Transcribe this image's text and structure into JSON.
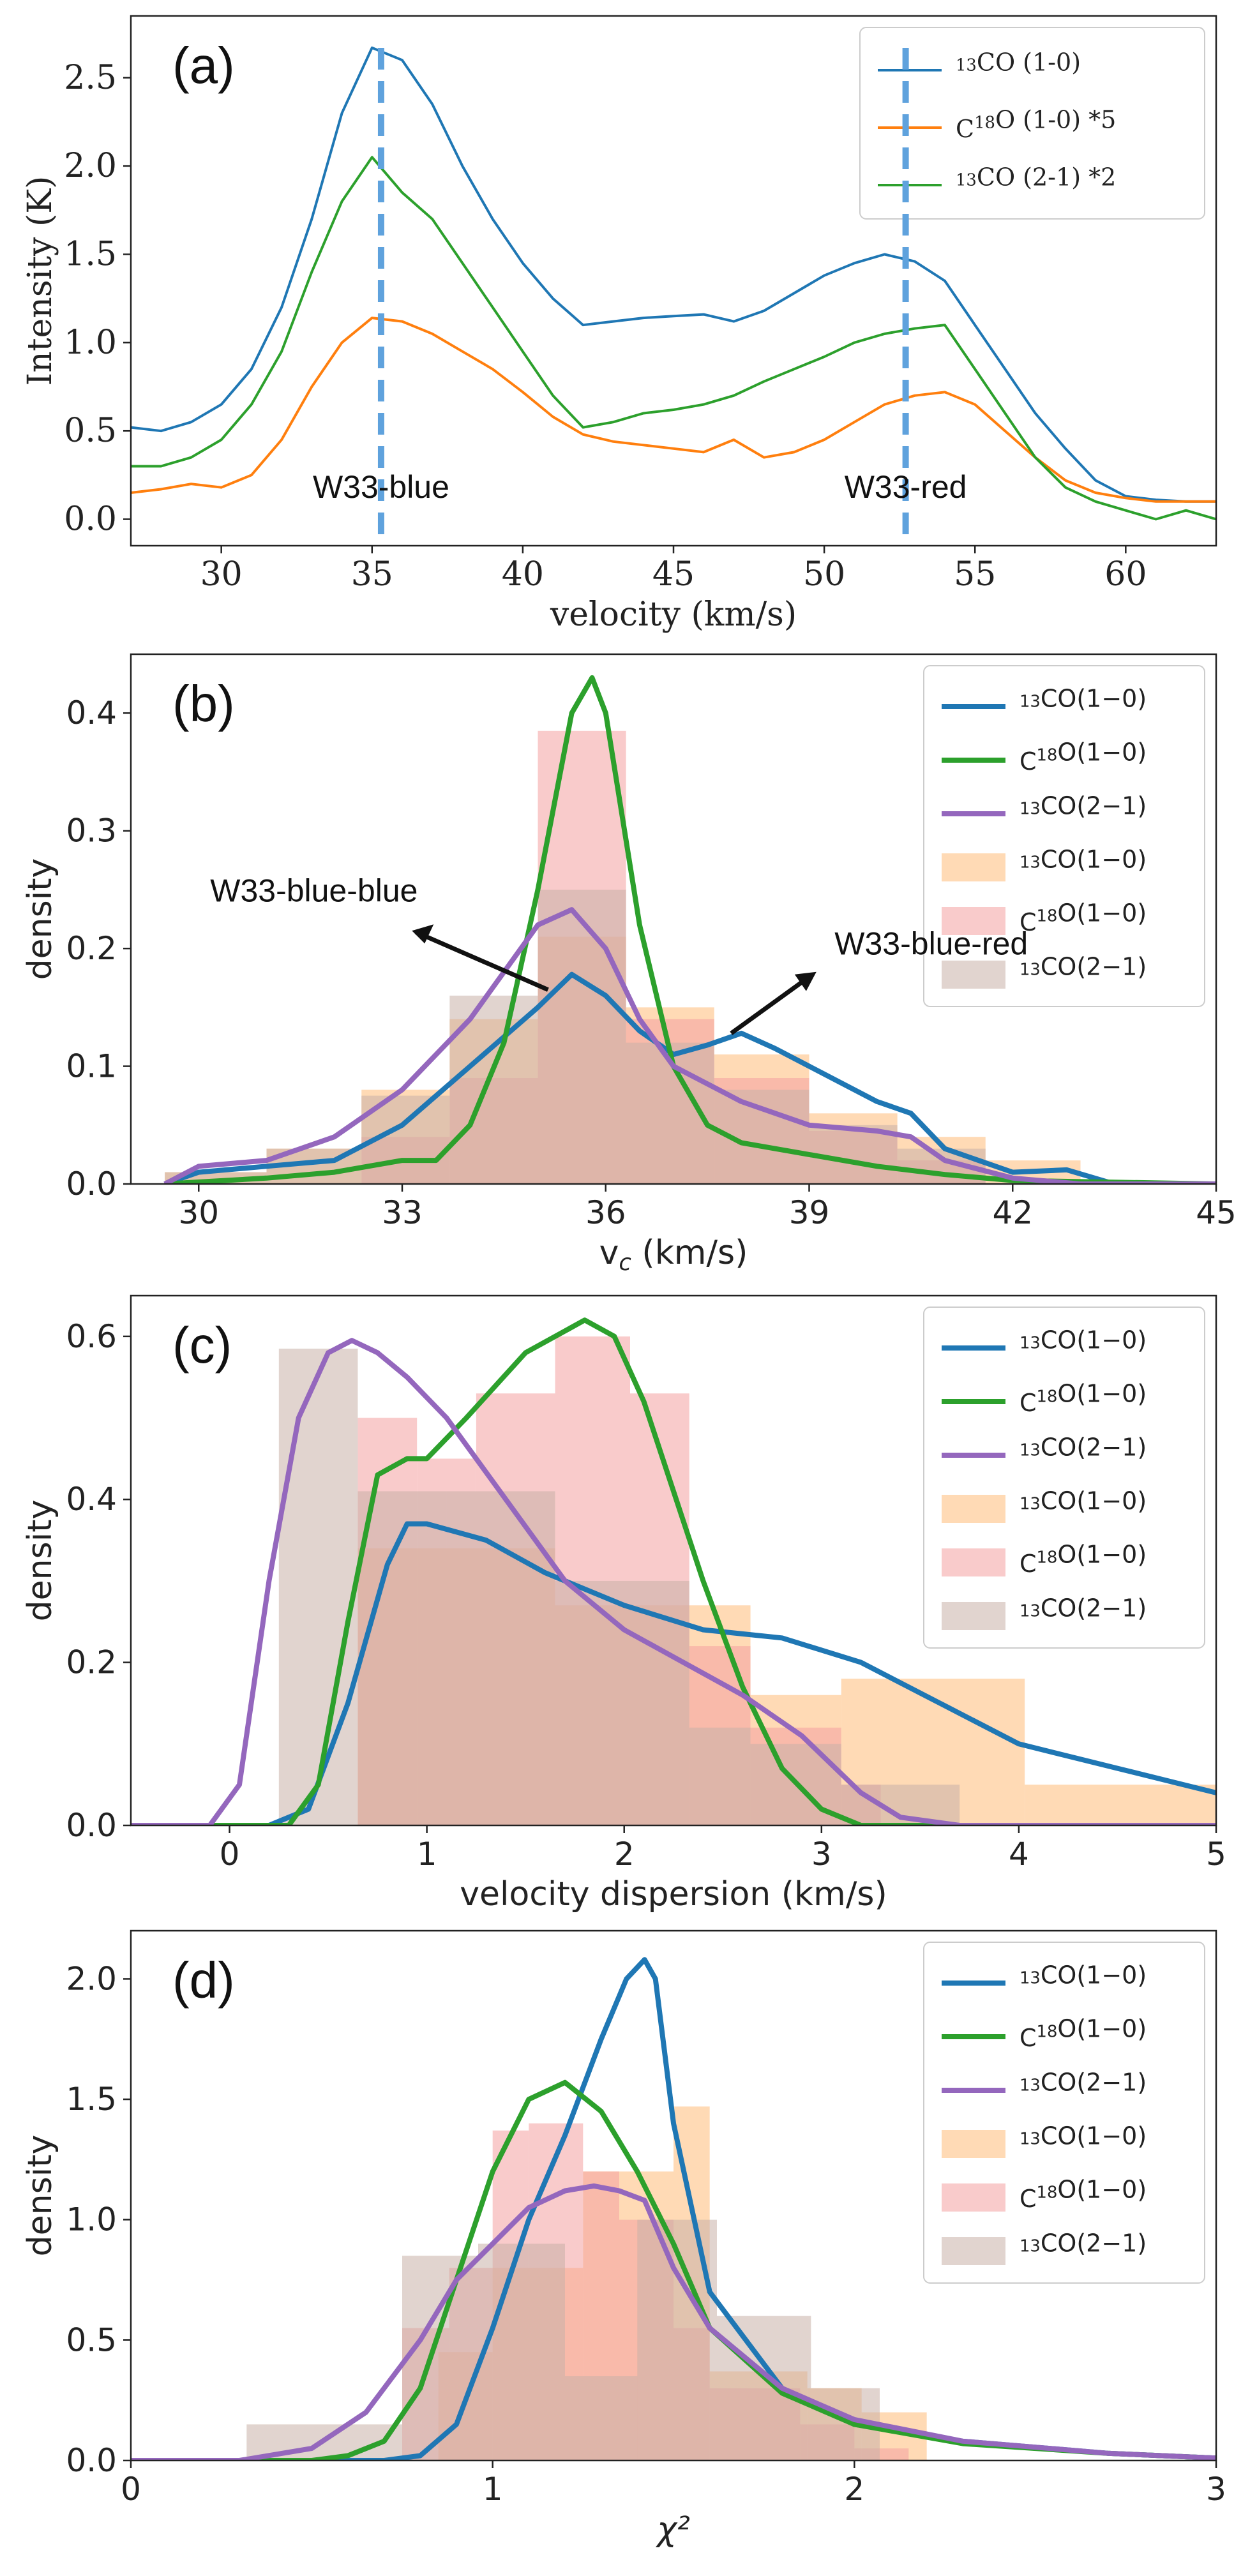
{
  "chart_data": [
    {
      "panel": "(a)",
      "type": "line",
      "xlabel": "velocity (km/s)",
      "ylabel": "Intensity (K)",
      "xlim": [
        27,
        63
      ],
      "ylim": [
        -0.15,
        2.85
      ],
      "xticks": [
        30,
        35,
        40,
        45,
        50,
        55,
        60
      ],
      "yticks": [
        0.0,
        0.5,
        1.0,
        1.5,
        2.0,
        2.5
      ],
      "legend_position": "top-right",
      "series": [
        {
          "name": "13CO (1-0)",
          "color": "#1f77b4",
          "x": [
            27,
            28,
            29,
            30,
            31,
            32,
            33,
            34,
            35,
            36,
            37,
            38,
            39,
            40,
            41,
            42,
            43,
            44,
            45,
            46,
            47,
            48,
            49,
            50,
            51,
            52,
            53,
            54,
            55,
            56,
            57,
            58,
            59,
            60,
            61,
            62,
            63
          ],
          "y": [
            0.52,
            0.5,
            0.55,
            0.65,
            0.85,
            1.2,
            1.7,
            2.3,
            2.67,
            2.6,
            2.35,
            2.0,
            1.7,
            1.45,
            1.25,
            1.1,
            1.12,
            1.14,
            1.15,
            1.16,
            1.12,
            1.18,
            1.28,
            1.38,
            1.45,
            1.5,
            1.46,
            1.35,
            1.1,
            0.85,
            0.6,
            0.4,
            0.22,
            0.13,
            0.11,
            0.1,
            0.1
          ]
        },
        {
          "name": "C18O (1-0) *5",
          "color": "#ff7f0e",
          "x": [
            27,
            28,
            29,
            30,
            31,
            32,
            33,
            34,
            35,
            36,
            37,
            38,
            39,
            40,
            41,
            42,
            43,
            44,
            45,
            46,
            47,
            48,
            49,
            50,
            51,
            52,
            53,
            54,
            55,
            56,
            57,
            58,
            59,
            60,
            61,
            62,
            63
          ],
          "y": [
            0.15,
            0.17,
            0.2,
            0.18,
            0.25,
            0.45,
            0.75,
            1.0,
            1.14,
            1.12,
            1.05,
            0.95,
            0.85,
            0.72,
            0.58,
            0.48,
            0.44,
            0.42,
            0.4,
            0.38,
            0.45,
            0.35,
            0.38,
            0.45,
            0.55,
            0.65,
            0.7,
            0.72,
            0.65,
            0.5,
            0.35,
            0.22,
            0.15,
            0.12,
            0.1,
            0.1,
            0.1
          ]
        },
        {
          "name": "13CO (2-1) *2",
          "color": "#2ca02c",
          "x": [
            27,
            28,
            29,
            30,
            31,
            32,
            33,
            34,
            35,
            36,
            37,
            38,
            39,
            40,
            41,
            42,
            43,
            44,
            45,
            46,
            47,
            48,
            49,
            50,
            51,
            52,
            53,
            54,
            55,
            56,
            57,
            58,
            59,
            60,
            61,
            62,
            63
          ],
          "y": [
            0.3,
            0.3,
            0.35,
            0.45,
            0.65,
            0.95,
            1.4,
            1.8,
            2.05,
            1.85,
            1.7,
            1.45,
            1.2,
            0.95,
            0.7,
            0.52,
            0.55,
            0.6,
            0.62,
            0.65,
            0.7,
            0.78,
            0.85,
            0.92,
            1.0,
            1.05,
            1.08,
            1.1,
            0.85,
            0.6,
            0.35,
            0.18,
            0.1,
            0.05,
            0.0,
            0.05,
            0.0
          ]
        }
      ],
      "annotations": [
        {
          "text": "W33-blue",
          "x": 35.3
        },
        {
          "text": "W33-red",
          "x": 52.7
        }
      ]
    },
    {
      "panel": "(b)",
      "type": "histogram+kde",
      "xlabel": "v_c (km/s)",
      "ylabel": "density",
      "xlim": [
        29,
        45
      ],
      "ylim": [
        0,
        0.45
      ],
      "xticks": [
        30,
        33,
        36,
        39,
        42,
        45
      ],
      "yticks": [
        0.0,
        0.1,
        0.2,
        0.3,
        0.4
      ],
      "legend_position": "top-right",
      "annotations": [
        {
          "text": "W33-blue-blue"
        },
        {
          "text": "W33-blue-red"
        }
      ],
      "kde": [
        {
          "name": "13CO(1−0)",
          "color": "#1f77b4",
          "x": [
            29.5,
            30,
            31,
            32,
            33,
            34,
            35,
            35.5,
            36,
            36.5,
            37,
            37.5,
            38,
            38.5,
            39,
            40,
            40.5,
            41,
            42,
            42.8,
            43.5,
            45
          ],
          "y": [
            0.0,
            0.01,
            0.015,
            0.02,
            0.05,
            0.1,
            0.15,
            0.178,
            0.16,
            0.13,
            0.11,
            0.118,
            0.128,
            0.115,
            0.1,
            0.07,
            0.06,
            0.03,
            0.01,
            0.012,
            0.0,
            0.0
          ]
        },
        {
          "name": "C18O(1−0)",
          "color": "#2ca02c",
          "x": [
            29.5,
            31,
            32,
            33,
            33.5,
            34,
            34.5,
            35,
            35.5,
            35.8,
            36,
            36.5,
            37,
            37.5,
            38,
            39,
            40,
            41,
            42,
            45
          ],
          "y": [
            0.0,
            0.005,
            0.01,
            0.02,
            0.02,
            0.05,
            0.12,
            0.25,
            0.4,
            0.43,
            0.4,
            0.22,
            0.1,
            0.05,
            0.035,
            0.025,
            0.015,
            0.008,
            0.003,
            0.0
          ]
        },
        {
          "name": "13CO(2−1)",
          "color": "#9467bd",
          "x": [
            29.5,
            30,
            31,
            32,
            33,
            34,
            35,
            35.5,
            36,
            36.5,
            37,
            38,
            39,
            40,
            40.5,
            41,
            42,
            43,
            45
          ],
          "y": [
            0.0,
            0.015,
            0.02,
            0.04,
            0.08,
            0.14,
            0.22,
            0.233,
            0.2,
            0.14,
            0.1,
            0.07,
            0.05,
            0.045,
            0.04,
            0.02,
            0.005,
            0.0,
            0.0
          ]
        }
      ],
      "hist": [
        {
          "name": "13CO(1−0)",
          "color": "#ffbb78",
          "bins": [
            29.5,
            31,
            32.4,
            33.7,
            35.0,
            36.3,
            37.6,
            39.0,
            40.3,
            41.6,
            43.0
          ],
          "values": [
            0.01,
            0.03,
            0.08,
            0.14,
            0.21,
            0.15,
            0.11,
            0.06,
            0.04,
            0.02
          ]
        },
        {
          "name": "C18O(1−0)",
          "color": "#f4a0a0",
          "bins": [
            32.4,
            33.7,
            35.0,
            36.3,
            37.6,
            39.0,
            40.3,
            41.6
          ],
          "values": [
            0.04,
            0.09,
            0.385,
            0.14,
            0.09,
            0.045,
            0.02
          ]
        },
        {
          "name": "13CO(2−1)",
          "color": "#c9b1a8",
          "bins": [
            29.5,
            31,
            32.4,
            33.7,
            35.0,
            36.3,
            37.6,
            39.0,
            40.3,
            41.6
          ],
          "values": [
            0.01,
            0.03,
            0.075,
            0.16,
            0.25,
            0.12,
            0.08,
            0.05,
            0.03
          ]
        }
      ]
    },
    {
      "panel": "(c)",
      "type": "histogram+kde",
      "xlabel": "velocity dispersion (km/s)",
      "ylabel": "density",
      "xlim": [
        -0.5,
        5
      ],
      "ylim": [
        0,
        0.65
      ],
      "xticks": [
        0,
        1,
        2,
        3,
        4,
        5
      ],
      "yticks": [
        0.0,
        0.2,
        0.4,
        0.6
      ],
      "legend_position": "top-right",
      "kde": [
        {
          "name": "13CO(1−0)",
          "color": "#1f77b4",
          "x": [
            -0.5,
            0.2,
            0.4,
            0.6,
            0.8,
            0.9,
            1.0,
            1.3,
            1.6,
            2.0,
            2.4,
            2.8,
            3.2,
            3.6,
            4.0,
            4.5,
            5.0
          ],
          "y": [
            0.0,
            0.0,
            0.02,
            0.15,
            0.32,
            0.37,
            0.37,
            0.35,
            0.31,
            0.27,
            0.24,
            0.23,
            0.2,
            0.15,
            0.1,
            0.07,
            0.04
          ]
        },
        {
          "name": "C18O(1−0)",
          "color": "#2ca02c",
          "x": [
            -0.5,
            0.3,
            0.45,
            0.6,
            0.75,
            0.9,
            1.0,
            1.2,
            1.5,
            1.8,
            1.95,
            2.1,
            2.4,
            2.6,
            2.8,
            3.0,
            3.2,
            5.0
          ],
          "y": [
            0.0,
            0.0,
            0.05,
            0.25,
            0.43,
            0.45,
            0.45,
            0.5,
            0.58,
            0.62,
            0.6,
            0.52,
            0.3,
            0.17,
            0.07,
            0.02,
            0.0,
            0.0
          ]
        },
        {
          "name": "13CO(2−1)",
          "color": "#9467bd",
          "x": [
            -0.5,
            -0.1,
            0.05,
            0.2,
            0.35,
            0.5,
            0.62,
            0.75,
            0.9,
            1.1,
            1.4,
            1.7,
            2.0,
            2.3,
            2.6,
            2.9,
            3.2,
            3.4,
            3.7,
            5.0
          ],
          "y": [
            0.0,
            0.0,
            0.05,
            0.3,
            0.5,
            0.58,
            0.595,
            0.58,
            0.55,
            0.5,
            0.4,
            0.3,
            0.24,
            0.2,
            0.16,
            0.11,
            0.04,
            0.01,
            0.0,
            0.0
          ]
        }
      ],
      "hist": [
        {
          "name": "13CO(1−0)",
          "color": "#ffbb78",
          "bins": [
            0.65,
            1.65,
            2.64,
            3.1,
            4.03,
            5.0
          ],
          "values": [
            0.34,
            0.27,
            0.16,
            0.18,
            0.05
          ]
        },
        {
          "name": "C18O(1−0)",
          "color": "#f4a0a0",
          "bins": [
            0.65,
            0.95,
            1.25,
            1.65,
            2.03,
            2.33,
            2.64,
            3.1,
            3.3
          ],
          "values": [
            0.5,
            0.45,
            0.53,
            0.6,
            0.53,
            0.22,
            0.12,
            0.05
          ]
        },
        {
          "name": "13CO(2−1)",
          "color": "#c9b1a8",
          "bins": [
            0.25,
            0.65,
            1.1,
            1.65,
            2.33,
            2.64,
            3.1,
            3.7
          ],
          "values": [
            0.585,
            0.41,
            0.41,
            0.3,
            0.12,
            0.1,
            0.05
          ]
        }
      ]
    },
    {
      "panel": "(d)",
      "type": "histogram+kde",
      "xlabel": "χ²",
      "ylabel": "density",
      "xlim": [
        0,
        3
      ],
      "ylim": [
        0,
        2.2
      ],
      "xticks": [
        0,
        1,
        2,
        3
      ],
      "yticks": [
        0.0,
        0.5,
        1.0,
        1.5,
        2.0
      ],
      "legend_position": "top-right",
      "kde": [
        {
          "name": "13CO(1−0)",
          "color": "#1f77b4",
          "x": [
            0,
            0.7,
            0.8,
            0.9,
            1.0,
            1.1,
            1.2,
            1.3,
            1.37,
            1.42,
            1.45,
            1.5,
            1.6,
            1.8,
            2.0,
            2.3,
            2.7,
            3.0
          ],
          "y": [
            0.0,
            0.0,
            0.02,
            0.15,
            0.55,
            1.0,
            1.35,
            1.75,
            2.0,
            2.08,
            2.0,
            1.4,
            0.7,
            0.3,
            0.15,
            0.08,
            0.03,
            0.01
          ]
        },
        {
          "name": "C18O(1−0)",
          "color": "#2ca02c",
          "x": [
            0,
            0.5,
            0.6,
            0.7,
            0.8,
            0.9,
            1.0,
            1.1,
            1.2,
            1.3,
            1.4,
            1.5,
            1.6,
            1.8,
            2.0,
            2.3,
            2.7,
            3.0
          ],
          "y": [
            0.0,
            0.0,
            0.02,
            0.08,
            0.3,
            0.75,
            1.2,
            1.5,
            1.57,
            1.45,
            1.2,
            0.9,
            0.55,
            0.28,
            0.15,
            0.07,
            0.03,
            0.01
          ]
        },
        {
          "name": "13CO(2−1)",
          "color": "#9467bd",
          "x": [
            0,
            0.3,
            0.5,
            0.65,
            0.8,
            0.9,
            1.0,
            1.1,
            1.2,
            1.28,
            1.35,
            1.42,
            1.5,
            1.6,
            1.8,
            2.0,
            2.3,
            2.7,
            3.0
          ],
          "y": [
            0.0,
            0.0,
            0.05,
            0.2,
            0.5,
            0.75,
            0.9,
            1.05,
            1.12,
            1.14,
            1.12,
            1.08,
            0.8,
            0.55,
            0.3,
            0.17,
            0.08,
            0.03,
            0.01
          ]
        }
      ],
      "hist": [
        {
          "name": "13CO(1−0)",
          "color": "#ffbb78",
          "bins": [
            0.85,
            1.0,
            1.25,
            1.5,
            1.6,
            1.87,
            2.02,
            2.2
          ],
          "values": [
            0.45,
            0.8,
            1.2,
            1.47,
            0.37,
            0.3,
            0.2
          ]
        },
        {
          "name": "C18O(1−0)",
          "color": "#f4a0a0",
          "bins": [
            0.75,
            0.88,
            1.0,
            1.1,
            1.25,
            1.35,
            1.5,
            1.6,
            1.85,
            2.0,
            2.15
          ],
          "values": [
            0.55,
            0.8,
            1.37,
            1.4,
            1.2,
            1.0,
            0.55,
            0.3,
            0.15,
            0.05
          ]
        },
        {
          "name": "13CO(2−1)",
          "color": "#c9b1a8",
          "bins": [
            0.32,
            0.75,
            0.96,
            1.2,
            1.4,
            1.62,
            1.88,
            2.07
          ],
          "values": [
            0.15,
            0.85,
            0.9,
            0.35,
            1.0,
            0.6,
            0.3
          ]
        }
      ]
    }
  ]
}
